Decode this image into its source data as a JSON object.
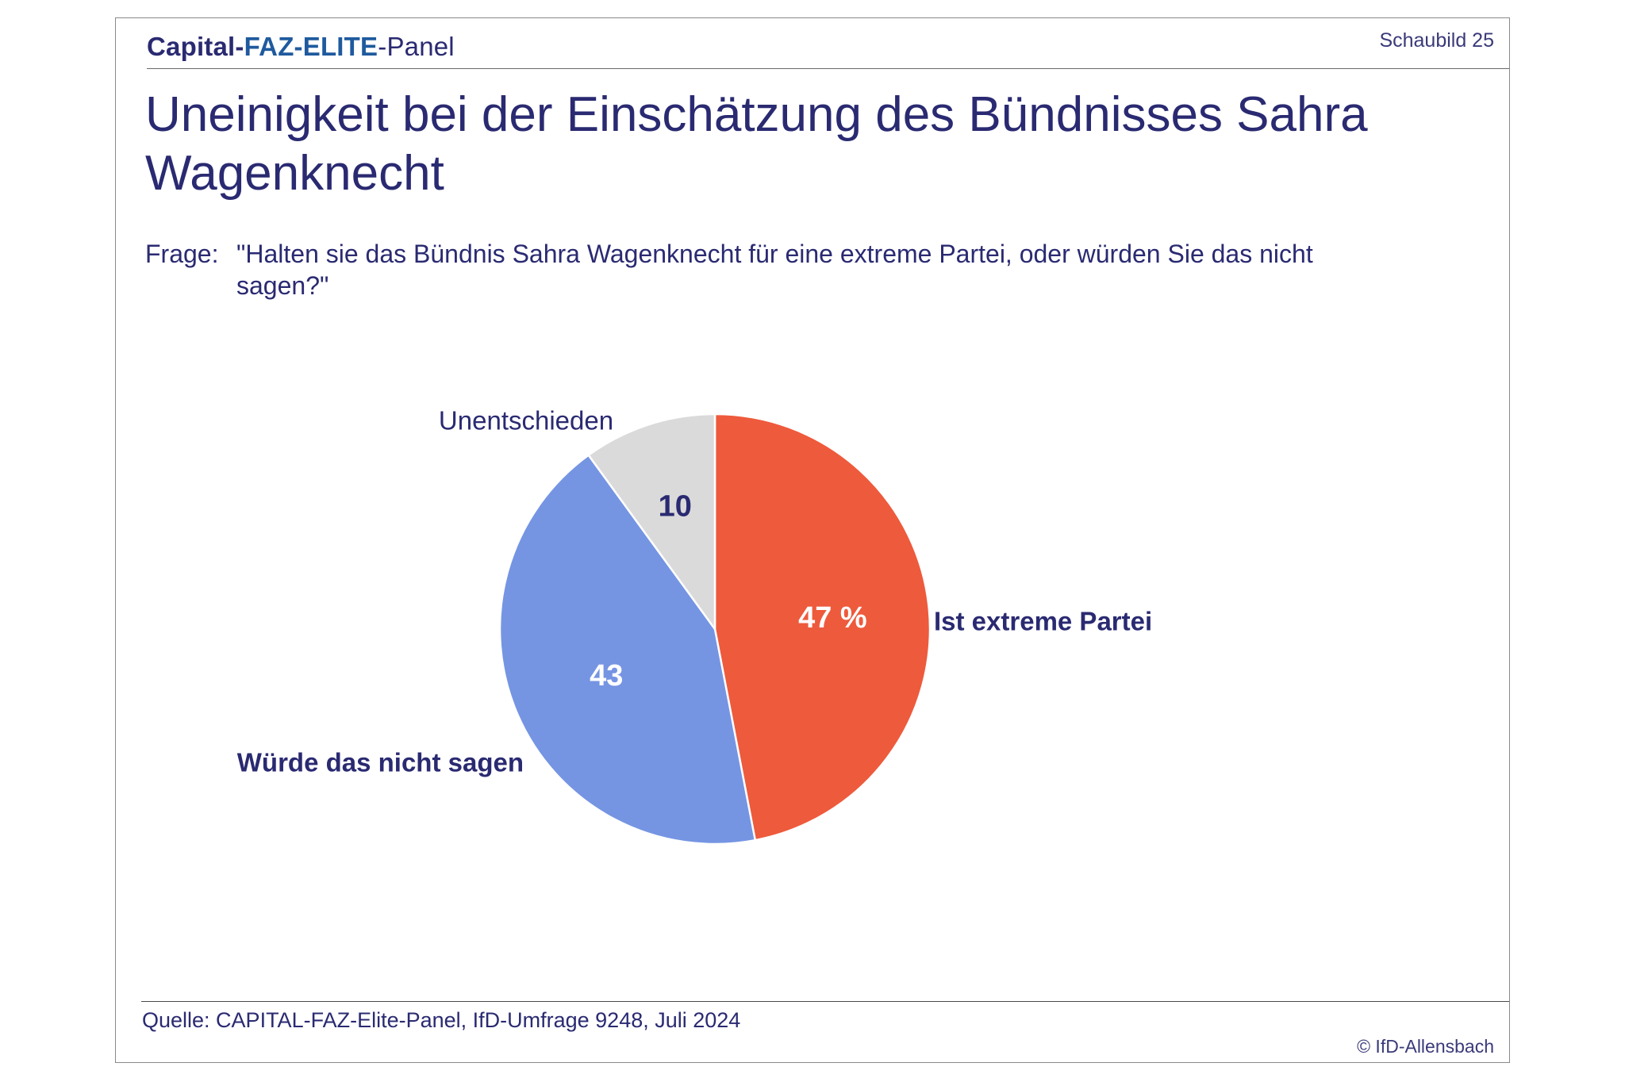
{
  "header": {
    "brand_part1": "Capital-",
    "brand_part2": "FAZ-ELITE",
    "brand_part3": "-Panel",
    "figure_label": "Schaubild 25"
  },
  "title": "Uneinigkeit bei der Einschätzung des Bündnisses Sahra Wagenknecht",
  "question": {
    "prefix": "Frage:",
    "text": "\"Halten sie das Bündnis Sahra Wagenknecht für eine extreme Partei, oder würden Sie das nicht sagen?\""
  },
  "chart_data": {
    "type": "pie",
    "unit": "%",
    "slices": [
      {
        "label": "Ist extreme Partei",
        "value": 47,
        "value_label": "47 %",
        "color": "#ee5a3c",
        "label_color": "#2a2a72",
        "label_bold": true,
        "value_color": "#ffffff"
      },
      {
        "label": "Würde das nicht sagen",
        "value": 43,
        "value_label": "43",
        "color": "#7595e3",
        "label_color": "#2a2a72",
        "label_bold": true,
        "value_color": "#ffffff"
      },
      {
        "label": "Unentschieden",
        "value": 10,
        "value_label": "10",
        "color": "#dadada",
        "label_color": "#2a2a72",
        "label_bold": false,
        "value_color": "#2a2a72"
      }
    ]
  },
  "footer": {
    "source": "Quelle: CAPITAL-FAZ-Elite-Panel, IfD-Umfrage 9248, Juli 2024",
    "copyright": "© IfD-Allensbach"
  }
}
